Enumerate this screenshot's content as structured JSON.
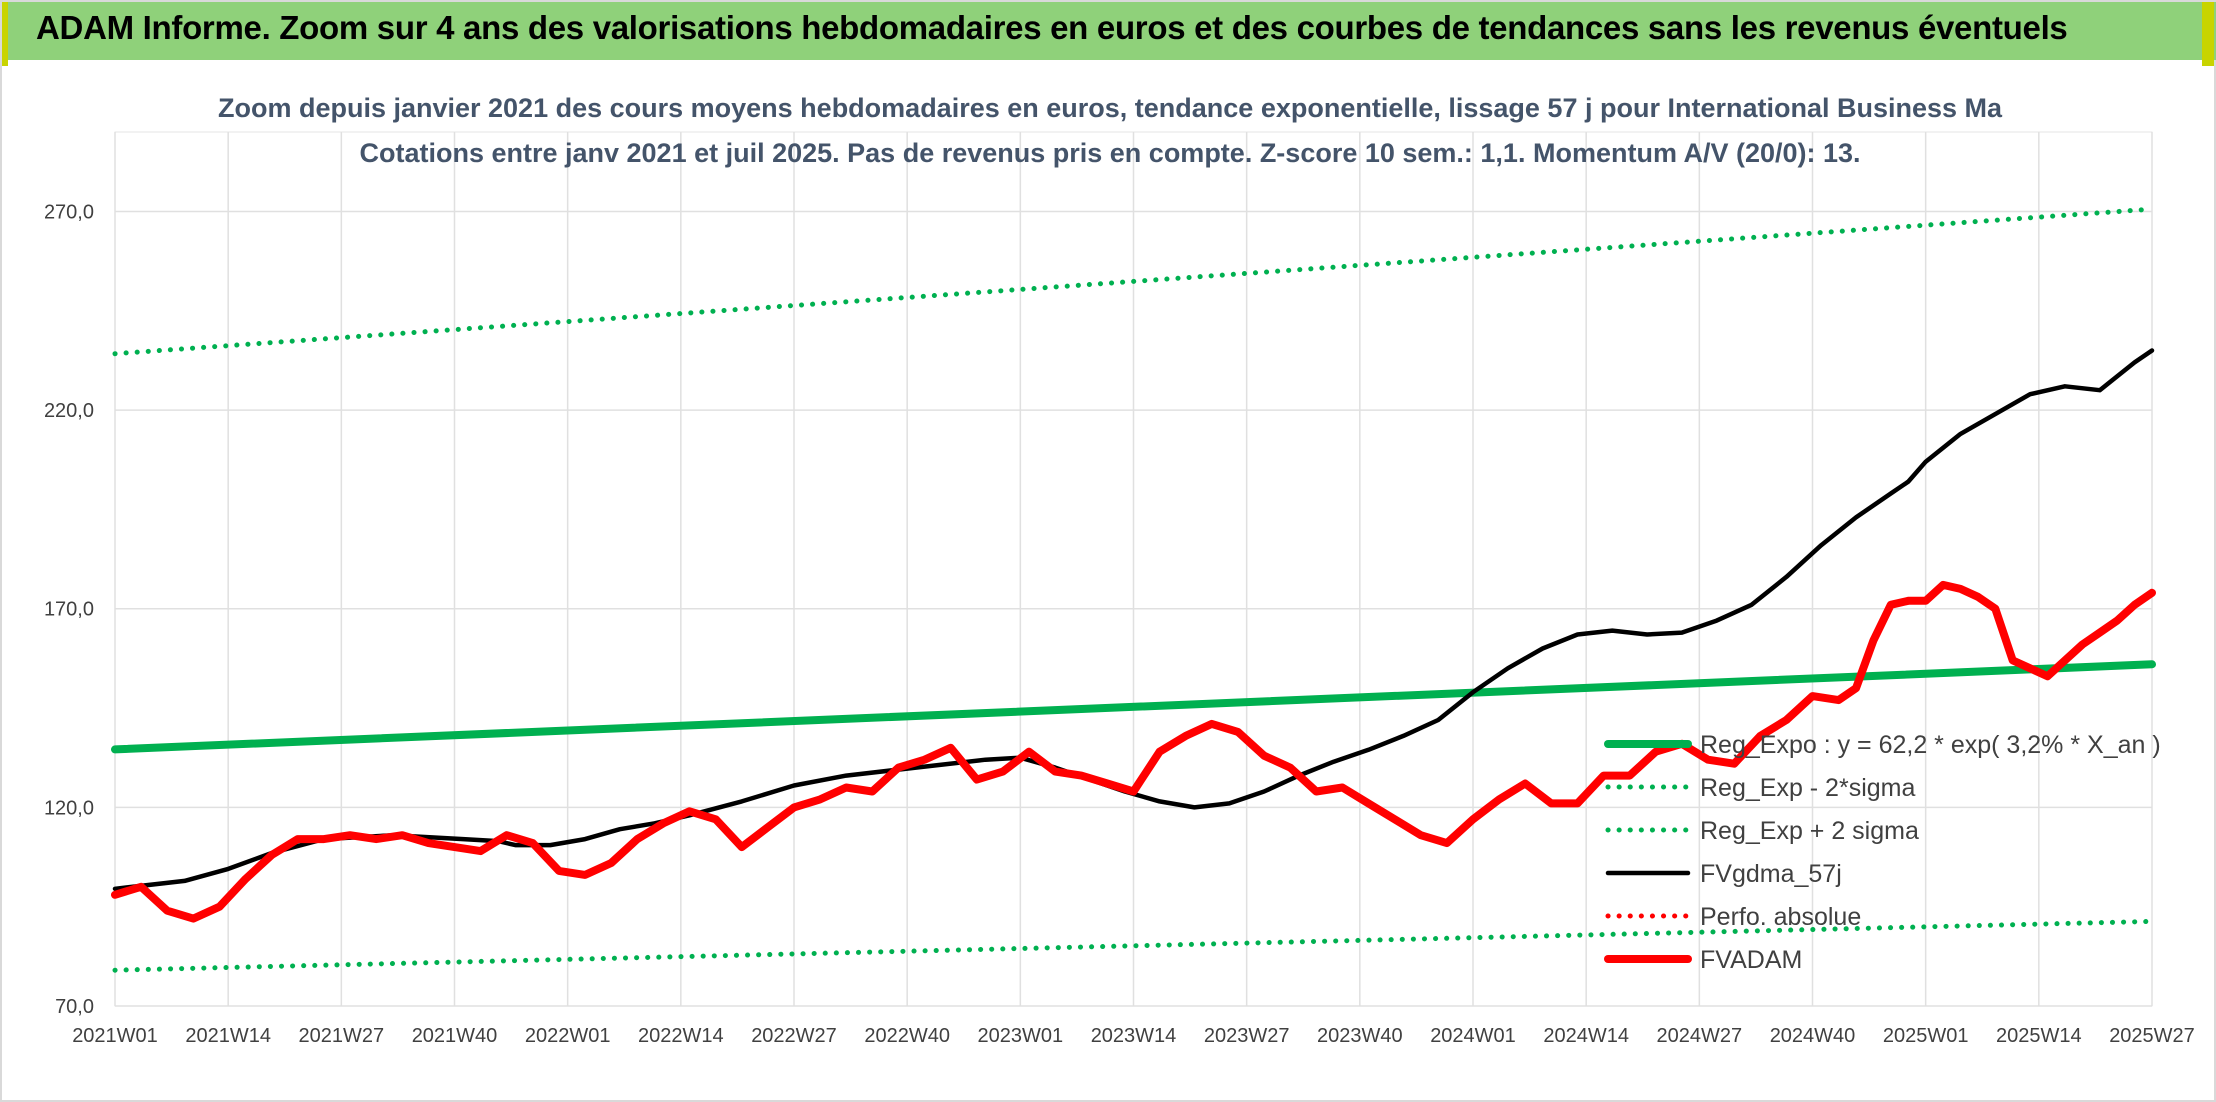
{
  "banner": {
    "title": "ADAM Informe. Zoom sur 4 ans des valorisations hebdomadaires en euros et des courbes de tendances sans les revenus éventuels"
  },
  "colors": {
    "banner_bg": "#8fd17a",
    "green": "#00b050",
    "red": "#ff0000",
    "black": "#000000",
    "grid": "#e0e0e0"
  },
  "chart_data": {
    "type": "line",
    "title_lines": [
      "Zoom depuis janvier 2021 des cours moyens hebdomadaires en euros, tendance exponentielle, lissage 57 j pour International Business Ma",
      "Cotations entre janv 2021 et juil 2025. Pas de revenus pris en compte. Z-score 10 sem.: 1,1. Momentum A/V (20/0): 13."
    ],
    "y_ticks": [
      "70,0",
      "120,0",
      "170,0",
      "220,0",
      "270,0"
    ],
    "y_tick_values": [
      70,
      120,
      170,
      220,
      270
    ],
    "ylim": [
      70,
      290
    ],
    "x_count": 235,
    "x_ticks": [
      {
        "label": "2021W01",
        "index": 0
      },
      {
        "label": "2021W14",
        "index": 13
      },
      {
        "label": "2021W27",
        "index": 26
      },
      {
        "label": "2021W40",
        "index": 39
      },
      {
        "label": "2022W01",
        "index": 52
      },
      {
        "label": "2022W14",
        "index": 65
      },
      {
        "label": "2022W27",
        "index": 78
      },
      {
        "label": "2022W40",
        "index": 91
      },
      {
        "label": "2023W01",
        "index": 104
      },
      {
        "label": "2023W14",
        "index": 117
      },
      {
        "label": "2023W27",
        "index": 130
      },
      {
        "label": "2023W40",
        "index": 143
      },
      {
        "label": "2024W01",
        "index": 156
      },
      {
        "label": "2024W14",
        "index": 169
      },
      {
        "label": "2024W27",
        "index": 182
      },
      {
        "label": "2024W40",
        "index": 195
      },
      {
        "label": "2025W01",
        "index": 208
      },
      {
        "label": "2025W14",
        "index": 221
      },
      {
        "label": "2025W27",
        "index": 234
      }
    ],
    "grid": true,
    "legend_position": "right",
    "series": [
      {
        "name": "Reg_Expo : y = 62,2 * exp( 3,2% *  X_an )",
        "style": "solid",
        "color": "#00b050",
        "points": [
          [
            0,
            134.6
          ],
          [
            234,
            156.0
          ]
        ]
      },
      {
        "name": "Reg_Exp - 2*sigma",
        "style": "dotted",
        "color": "#00b050",
        "points": [
          [
            0,
            79.0
          ],
          [
            234,
            91.3
          ]
        ]
      },
      {
        "name": "Reg_Exp + 2 sigma",
        "style": "dotted",
        "color": "#00b050",
        "points": [
          [
            0,
            234.2
          ],
          [
            234,
            270.6
          ]
        ]
      },
      {
        "name": "FVgdma_57j",
        "style": "solid",
        "color": "#000000",
        "points": [
          [
            0,
            99.5
          ],
          [
            8,
            101.5
          ],
          [
            13,
            104.5
          ],
          [
            18,
            108.5
          ],
          [
            24,
            112
          ],
          [
            32,
            113
          ],
          [
            40,
            112
          ],
          [
            44,
            111.5
          ],
          [
            46,
            110.5
          ],
          [
            50,
            110.5
          ],
          [
            54,
            112
          ],
          [
            58,
            114.5
          ],
          [
            62,
            116
          ],
          [
            66,
            118
          ],
          [
            72,
            121.5
          ],
          [
            78,
            125.5
          ],
          [
            84,
            128
          ],
          [
            92,
            130
          ],
          [
            100,
            132
          ],
          [
            104,
            132.5
          ],
          [
            108,
            130
          ],
          [
            112,
            127
          ],
          [
            116,
            124
          ],
          [
            120,
            121.5
          ],
          [
            124,
            120
          ],
          [
            128,
            121
          ],
          [
            132,
            124
          ],
          [
            136,
            128
          ],
          [
            140,
            131.5
          ],
          [
            144,
            134.5
          ],
          [
            148,
            138
          ],
          [
            152,
            142
          ],
          [
            156,
            149
          ],
          [
            160,
            155
          ],
          [
            164,
            160
          ],
          [
            168,
            163.5
          ],
          [
            172,
            164.5
          ],
          [
            176,
            163.5
          ],
          [
            180,
            164
          ],
          [
            184,
            167
          ],
          [
            188,
            171
          ],
          [
            192,
            178
          ],
          [
            196,
            186
          ],
          [
            200,
            193
          ],
          [
            204,
            199
          ],
          [
            206,
            202
          ],
          [
            208,
            207
          ],
          [
            212,
            214
          ],
          [
            216,
            219
          ],
          [
            220,
            224
          ],
          [
            224,
            226
          ],
          [
            228,
            225
          ],
          [
            232,
            232
          ],
          [
            234,
            235
          ]
        ]
      },
      {
        "name": "Perfo. absolue",
        "style": "dotted",
        "color": "#ff0000",
        "points": []
      },
      {
        "name": "FVADAM",
        "style": "solid",
        "color": "#ff0000",
        "points": [
          [
            0,
            98
          ],
          [
            3,
            100
          ],
          [
            6,
            94
          ],
          [
            9,
            92
          ],
          [
            12,
            95
          ],
          [
            15,
            102
          ],
          [
            18,
            108
          ],
          [
            21,
            112
          ],
          [
            24,
            112
          ],
          [
            27,
            113
          ],
          [
            30,
            112
          ],
          [
            33,
            113
          ],
          [
            36,
            111
          ],
          [
            39,
            110
          ],
          [
            42,
            109
          ],
          [
            45,
            113
          ],
          [
            48,
            111
          ],
          [
            51,
            104
          ],
          [
            54,
            103
          ],
          [
            57,
            106
          ],
          [
            60,
            112
          ],
          [
            63,
            116
          ],
          [
            66,
            119
          ],
          [
            69,
            117
          ],
          [
            72,
            110
          ],
          [
            75,
            115
          ],
          [
            78,
            120
          ],
          [
            81,
            122
          ],
          [
            84,
            125
          ],
          [
            87,
            124
          ],
          [
            90,
            130
          ],
          [
            93,
            132
          ],
          [
            96,
            135
          ],
          [
            99,
            127
          ],
          [
            102,
            129
          ],
          [
            105,
            134
          ],
          [
            108,
            129
          ],
          [
            111,
            128
          ],
          [
            114,
            126
          ],
          [
            117,
            124
          ],
          [
            120,
            134
          ],
          [
            123,
            138
          ],
          [
            126,
            141
          ],
          [
            129,
            139
          ],
          [
            132,
            133
          ],
          [
            135,
            130
          ],
          [
            138,
            124
          ],
          [
            141,
            125
          ],
          [
            144,
            121
          ],
          [
            147,
            117
          ],
          [
            150,
            113
          ],
          [
            153,
            111
          ],
          [
            156,
            117
          ],
          [
            159,
            122
          ],
          [
            162,
            126
          ],
          [
            165,
            121
          ],
          [
            168,
            121
          ],
          [
            171,
            128
          ],
          [
            174,
            128
          ],
          [
            177,
            134
          ],
          [
            180,
            136
          ],
          [
            183,
            132
          ],
          [
            186,
            131
          ],
          [
            189,
            138
          ],
          [
            192,
            142
          ],
          [
            195,
            148
          ],
          [
            198,
            147
          ],
          [
            200,
            150
          ],
          [
            202,
            162
          ],
          [
            204,
            171
          ],
          [
            206,
            172
          ],
          [
            208,
            172
          ],
          [
            210,
            176
          ],
          [
            212,
            175
          ],
          [
            214,
            173
          ],
          [
            216,
            170
          ],
          [
            218,
            157
          ],
          [
            220,
            155
          ],
          [
            222,
            153
          ],
          [
            224,
            157
          ],
          [
            226,
            161
          ],
          [
            228,
            164
          ],
          [
            230,
            167
          ],
          [
            232,
            171
          ],
          [
            234,
            174
          ]
        ]
      }
    ]
  }
}
